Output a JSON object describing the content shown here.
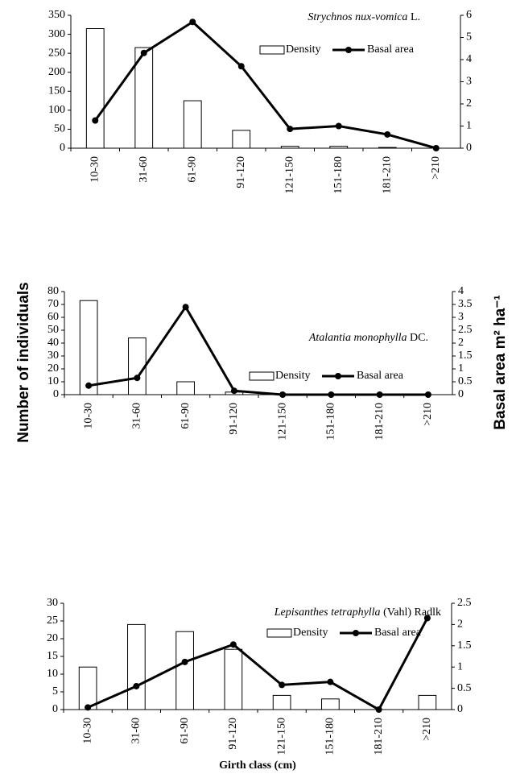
{
  "chart_data": [
    {
      "type": "bar_line",
      "species_name": "Strychnos nux-vomica",
      "authority": "L.",
      "categories": [
        "10-30",
        "31-60",
        "61-90",
        "91-120",
        "121-150",
        "151-180",
        "181-210",
        ">210"
      ],
      "series": [
        {
          "name": "Density",
          "color": "#ffffff",
          "values": [
            315,
            265,
            125,
            47,
            5,
            5,
            2,
            0
          ]
        },
        {
          "name": "Basal area",
          "color": "#000000",
          "axis": "y2",
          "values": [
            1.25,
            4.3,
            5.7,
            3.7,
            0.87,
            1.0,
            0.62,
            0
          ]
        }
      ],
      "ylim": [
        0,
        350
      ],
      "yticks": [
        0,
        50,
        100,
        150,
        200,
        250,
        300,
        350
      ],
      "y2lim": [
        0,
        6
      ],
      "y2ticks": [
        0,
        1,
        2,
        3,
        4,
        5,
        6
      ],
      "grid": false
    },
    {
      "type": "bar_line",
      "species_name": "Atalantia monophylla",
      "authority": "DC.",
      "y_label": "Number of individuals",
      "y2_label": "Basal area m² ha⁻¹",
      "categories": [
        "10-30",
        "31-60",
        "61-90",
        "91-120",
        "121-150",
        "151-180",
        "181-210",
        ">210"
      ],
      "series": [
        {
          "name": "Density",
          "color": "#ffffff",
          "values": [
            73,
            44,
            10,
            2,
            0,
            0,
            0,
            0
          ]
        },
        {
          "name": "Basal area",
          "color": "#000000",
          "axis": "y2",
          "values": [
            0.35,
            0.65,
            3.4,
            0.15,
            0,
            0,
            0,
            0
          ]
        }
      ],
      "ylim": [
        0,
        80
      ],
      "yticks": [
        0,
        10,
        20,
        30,
        40,
        50,
        60,
        70,
        80
      ],
      "y2lim": [
        0,
        4
      ],
      "y2ticks": [
        0,
        0.5,
        1,
        1.5,
        2,
        2.5,
        3,
        3.5,
        4
      ],
      "grid": false
    },
    {
      "type": "bar_line",
      "species_name": "Lepisanthes tetraphylla",
      "authority": "(Vahl) Radlk",
      "x_label": "Girth class (cm)",
      "categories": [
        "10-30",
        "31-60",
        "61-90",
        "91-120",
        "121-150",
        "151-180",
        "181-210",
        ">210"
      ],
      "series": [
        {
          "name": "Density",
          "color": "#ffffff",
          "values": [
            12,
            24,
            22,
            17,
            4,
            3,
            0,
            4
          ]
        },
        {
          "name": "Basal area",
          "color": "#000000",
          "axis": "y2",
          "values": [
            0.05,
            0.55,
            1.12,
            1.53,
            0.58,
            0.65,
            0,
            2.15
          ]
        }
      ],
      "ylim": [
        0,
        30
      ],
      "yticks": [
        0,
        5,
        10,
        15,
        20,
        25,
        30
      ],
      "y2lim": [
        0,
        2.5
      ],
      "y2ticks": [
        0,
        0.5,
        1,
        1.5,
        2,
        2.5
      ],
      "grid": false
    }
  ]
}
